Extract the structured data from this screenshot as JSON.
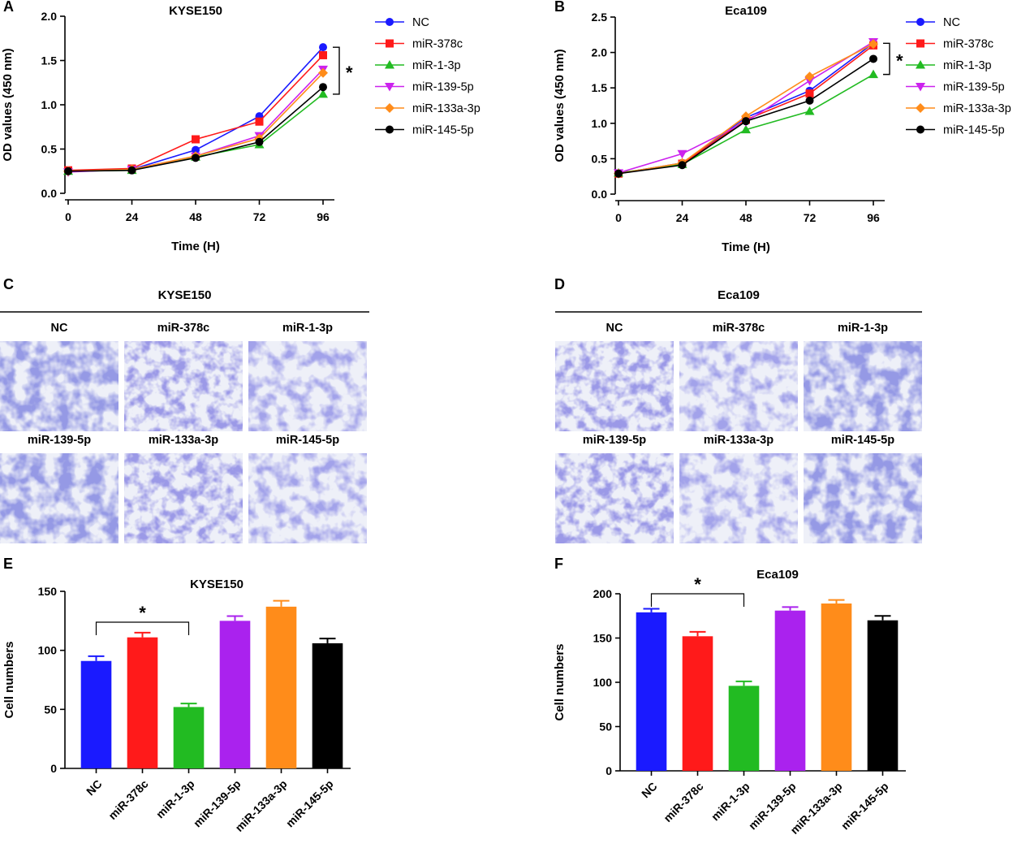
{
  "panels": {
    "A": "A",
    "B": "B",
    "C": "C",
    "D": "D",
    "E": "E",
    "F": "F"
  },
  "micrographs": {
    "C": {
      "title": "KYSE150",
      "labels": [
        "NC",
        "miR-378c",
        "miR-1-3p",
        "miR-139-5p",
        "miR-133a-3p",
        "miR-145-5p"
      ]
    },
    "D": {
      "title": "Eca109",
      "labels": [
        "NC",
        "miR-378c",
        "miR-1-3p",
        "miR-139-5p",
        "miR-133a-3p",
        "miR-145-5p"
      ]
    }
  },
  "chart_data": [
    {
      "panel": "A",
      "type": "line",
      "title": "KYSE150",
      "xlabel": "Time (H)",
      "ylabel": "OD values (450 nm)",
      "x": [
        0,
        24,
        48,
        72,
        96
      ],
      "xticks": [
        "0",
        "24",
        "48",
        "72",
        "96"
      ],
      "yticks": [
        "0.0",
        "0.5",
        "1.0",
        "1.5",
        "2.0"
      ],
      "ylim": [
        0,
        2.0
      ],
      "significance": "*",
      "series": [
        {
          "name": "NC",
          "color": "#1a1aff",
          "marker": "circle",
          "values": [
            0.25,
            0.27,
            0.49,
            0.87,
            1.65
          ]
        },
        {
          "name": "miR-378c",
          "color": "#ff1a1a",
          "marker": "square",
          "values": [
            0.26,
            0.28,
            0.61,
            0.81,
            1.56
          ]
        },
        {
          "name": "miR-1-3p",
          "color": "#22bb22",
          "marker": "triangle-up",
          "values": [
            0.25,
            0.26,
            0.41,
            0.55,
            1.12
          ]
        },
        {
          "name": "miR-139-5p",
          "color": "#cc22ee",
          "marker": "triangle-down",
          "values": [
            0.24,
            0.27,
            0.42,
            0.65,
            1.4
          ]
        },
        {
          "name": "miR-133a-3p",
          "color": "#ff8c1a",
          "marker": "diamond",
          "values": [
            0.25,
            0.27,
            0.42,
            0.62,
            1.36
          ]
        },
        {
          "name": "miR-145-5p",
          "color": "#000000",
          "marker": "circle",
          "values": [
            0.25,
            0.26,
            0.4,
            0.58,
            1.2
          ]
        }
      ]
    },
    {
      "panel": "B",
      "type": "line",
      "title": "Eca109",
      "xlabel": "Time (H)",
      "ylabel": "OD values (450 nm)",
      "x": [
        0,
        24,
        48,
        72,
        96
      ],
      "xticks": [
        "0",
        "24",
        "48",
        "72",
        "96"
      ],
      "yticks": [
        "0.0",
        "0.5",
        "1.0",
        "1.5",
        "2.0",
        "2.5"
      ],
      "ylim": [
        0,
        2.5
      ],
      "significance": "*",
      "series": [
        {
          "name": "NC",
          "color": "#1a1aff",
          "marker": "circle",
          "values": [
            0.29,
            0.44,
            1.08,
            1.46,
            2.13
          ]
        },
        {
          "name": "miR-378c",
          "color": "#ff1a1a",
          "marker": "square",
          "values": [
            0.29,
            0.43,
            1.05,
            1.42,
            2.1
          ]
        },
        {
          "name": "miR-1-3p",
          "color": "#22bb22",
          "marker": "triangle-up",
          "values": [
            0.3,
            0.42,
            0.91,
            1.17,
            1.69
          ]
        },
        {
          "name": "miR-139-5p",
          "color": "#cc22ee",
          "marker": "triangle-down",
          "values": [
            0.3,
            0.57,
            1.02,
            1.6,
            2.15
          ]
        },
        {
          "name": "miR-133a-3p",
          "color": "#ff8c1a",
          "marker": "diamond",
          "values": [
            0.29,
            0.44,
            1.1,
            1.66,
            2.12
          ]
        },
        {
          "name": "miR-145-5p",
          "color": "#000000",
          "marker": "circle",
          "values": [
            0.29,
            0.41,
            1.03,
            1.32,
            1.91
          ]
        }
      ]
    },
    {
      "panel": "E",
      "type": "bar",
      "title": "KYSE150",
      "xlabel": "",
      "ylabel": "Cell numbers",
      "categories": [
        "NC",
        "miR-378c",
        "miR-1-3p",
        "miR-139-5p",
        "miR-133a-3p",
        "miR-145-5p"
      ],
      "values": [
        91,
        111,
        52,
        125,
        137,
        106
      ],
      "errors": [
        4,
        4,
        3,
        4,
        5,
        4
      ],
      "colors": [
        "#1a1aff",
        "#ff1a1a",
        "#22bb22",
        "#aa22ee",
        "#ff8c1a",
        "#000000"
      ],
      "yticks": [
        "0",
        "50",
        "100",
        "150"
      ],
      "ylim": [
        0,
        150
      ],
      "significance": "*"
    },
    {
      "panel": "F",
      "type": "bar",
      "title": "Eca109",
      "xlabel": "",
      "ylabel": "Cell numbers",
      "categories": [
        "NC",
        "miR-378c",
        "miR-1-3p",
        "miR-139-5p",
        "miR-133a-3p",
        "miR-145-5p"
      ],
      "values": [
        179,
        152,
        96,
        181,
        189,
        170
      ],
      "errors": [
        4,
        5,
        5,
        4,
        4,
        5
      ],
      "colors": [
        "#1a1aff",
        "#ff1a1a",
        "#22bb22",
        "#aa22ee",
        "#ff8c1a",
        "#000000"
      ],
      "yticks": [
        "0",
        "50",
        "100",
        "150",
        "200"
      ],
      "ylim": [
        0,
        200
      ],
      "significance": "*"
    }
  ]
}
